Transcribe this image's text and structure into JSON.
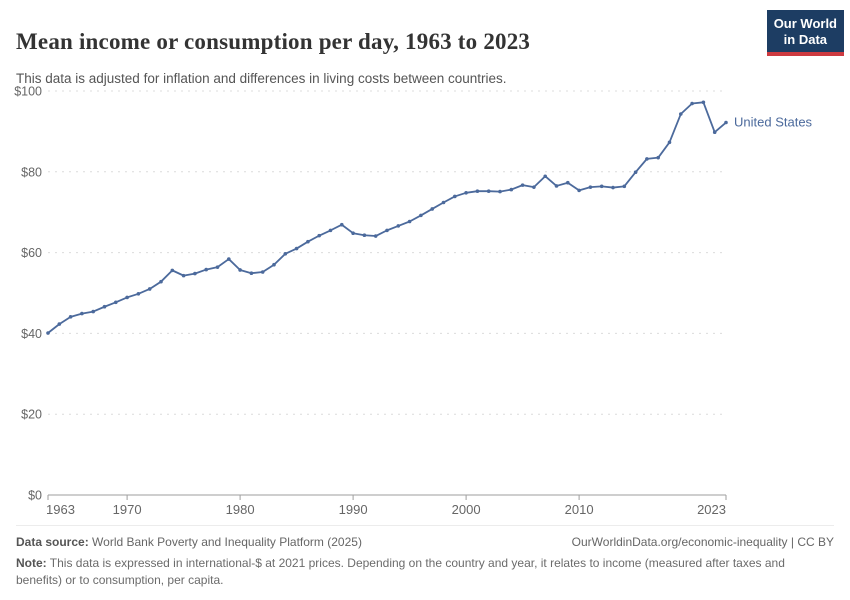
{
  "header": {
    "title": "Mean income or consumption per day, 1963 to 2023",
    "subtitle": "This data is adjusted for inflation and differences in living costs between countries.",
    "logo": {
      "line1": "Our World",
      "line2": "in Data",
      "bg_color": "#1d3d63",
      "accent_color": "#cd3a40"
    }
  },
  "chart_data": {
    "type": "line",
    "title": "Mean income or consumption per day, 1963 to 2023",
    "xlabel": "",
    "ylabel": "",
    "xlim": [
      1963,
      2023
    ],
    "ylim": [
      0,
      100
    ],
    "xticks": [
      1963,
      1970,
      1980,
      1990,
      2000,
      2010,
      2023
    ],
    "yticks": [
      0,
      20,
      40,
      60,
      80,
      100
    ],
    "ytick_prefix": "$",
    "grid": "dashed-horizontal",
    "legend_position": "end-of-line",
    "colors": {
      "line": "#4c6a9c",
      "grid": "#dcdcdc",
      "axis": "#9e9e9e",
      "tick_label": "#666666"
    },
    "series": [
      {
        "name": "United States",
        "color": "#4c6a9c",
        "x": [
          1963,
          1964,
          1965,
          1966,
          1967,
          1968,
          1969,
          1970,
          1971,
          1972,
          1973,
          1974,
          1975,
          1976,
          1977,
          1978,
          1979,
          1980,
          1981,
          1982,
          1983,
          1984,
          1985,
          1986,
          1987,
          1988,
          1989,
          1990,
          1991,
          1992,
          1993,
          1994,
          1995,
          1996,
          1997,
          1998,
          1999,
          2000,
          2001,
          2002,
          2003,
          2004,
          2005,
          2006,
          2007,
          2008,
          2009,
          2010,
          2011,
          2012,
          2013,
          2014,
          2015,
          2016,
          2017,
          2018,
          2019,
          2020,
          2021,
          2022,
          2023
        ],
        "values": [
          40.1,
          42.3,
          44.1,
          44.9,
          45.4,
          46.6,
          47.7,
          48.9,
          49.8,
          51.0,
          52.8,
          55.6,
          54.3,
          54.8,
          55.8,
          56.4,
          58.4,
          55.7,
          54.9,
          55.2,
          57.0,
          59.7,
          61.0,
          62.7,
          64.2,
          65.5,
          66.9,
          64.8,
          64.3,
          64.1,
          65.5,
          66.6,
          67.7,
          69.2,
          70.8,
          72.4,
          73.9,
          74.8,
          75.2,
          75.2,
          75.1,
          75.6,
          76.7,
          76.2,
          78.9,
          76.5,
          77.3,
          75.4,
          76.2,
          76.4,
          76.1,
          76.4,
          79.9,
          83.2,
          83.5,
          87.3,
          94.3,
          96.9,
          97.2,
          89.8,
          92.2
        ]
      }
    ]
  },
  "footer": {
    "datasource_label": "Data source:",
    "datasource_text": " World Bank Poverty and Inequality Platform (2025)",
    "attribution": "OurWorldinData.org/economic-inequality | CC BY",
    "note_label": "Note:",
    "note_text": " This data is expressed in international-$ at 2021 prices. Depending on the country and year, it relates to income (measured after taxes and benefits) or to consumption, per capita."
  }
}
